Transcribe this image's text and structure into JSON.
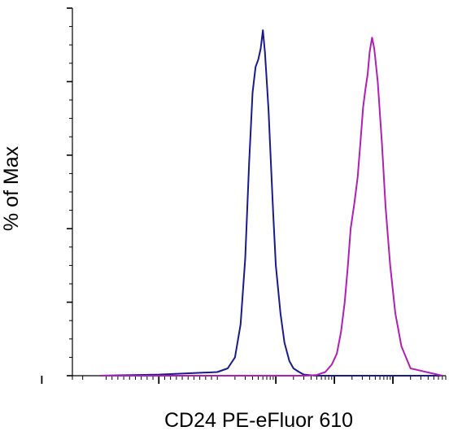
{
  "chart_data": {
    "type": "line",
    "title": "",
    "xlabel": "CD24 PE-eFluor 610",
    "ylabel": "% of Max",
    "x_scale": "log",
    "ylim": [
      0,
      100
    ],
    "grid": false,
    "legend": "none",
    "series": [
      {
        "color": "#1a1a8c",
        "x": [
          -100,
          0,
          100,
          150,
          200,
          250,
          300,
          350,
          400,
          450,
          500,
          550,
          600,
          650,
          700,
          750,
          800,
          900,
          1000,
          1200,
          1400,
          1700,
          2000,
          2500,
          3000,
          5000,
          10000,
          100000,
          700000
        ],
        "y": [
          0,
          0.3,
          1,
          2,
          5,
          14,
          32,
          58,
          77,
          84,
          86,
          89,
          94,
          88,
          80,
          72,
          62,
          44,
          30,
          17,
          9,
          4,
          2,
          1,
          0.3,
          0,
          0,
          0,
          0
        ]
      },
      {
        "color": "#b01fb5",
        "x": [
          -100,
          3000,
          5000,
          7000,
          9000,
          11000,
          13000,
          15000,
          17000,
          19000,
          22000,
          25000,
          28000,
          31000,
          34000,
          37000,
          40000,
          44000,
          48000,
          55000,
          65000,
          75000,
          90000,
          110000,
          140000,
          200000,
          700000
        ],
        "y": [
          0,
          0,
          0.2,
          1,
          3,
          6,
          12,
          20,
          30,
          40,
          47,
          54,
          64,
          73,
          78,
          82,
          88,
          92,
          89,
          80,
          63,
          46,
          30,
          17,
          8,
          2,
          0
        ]
      }
    ]
  }
}
